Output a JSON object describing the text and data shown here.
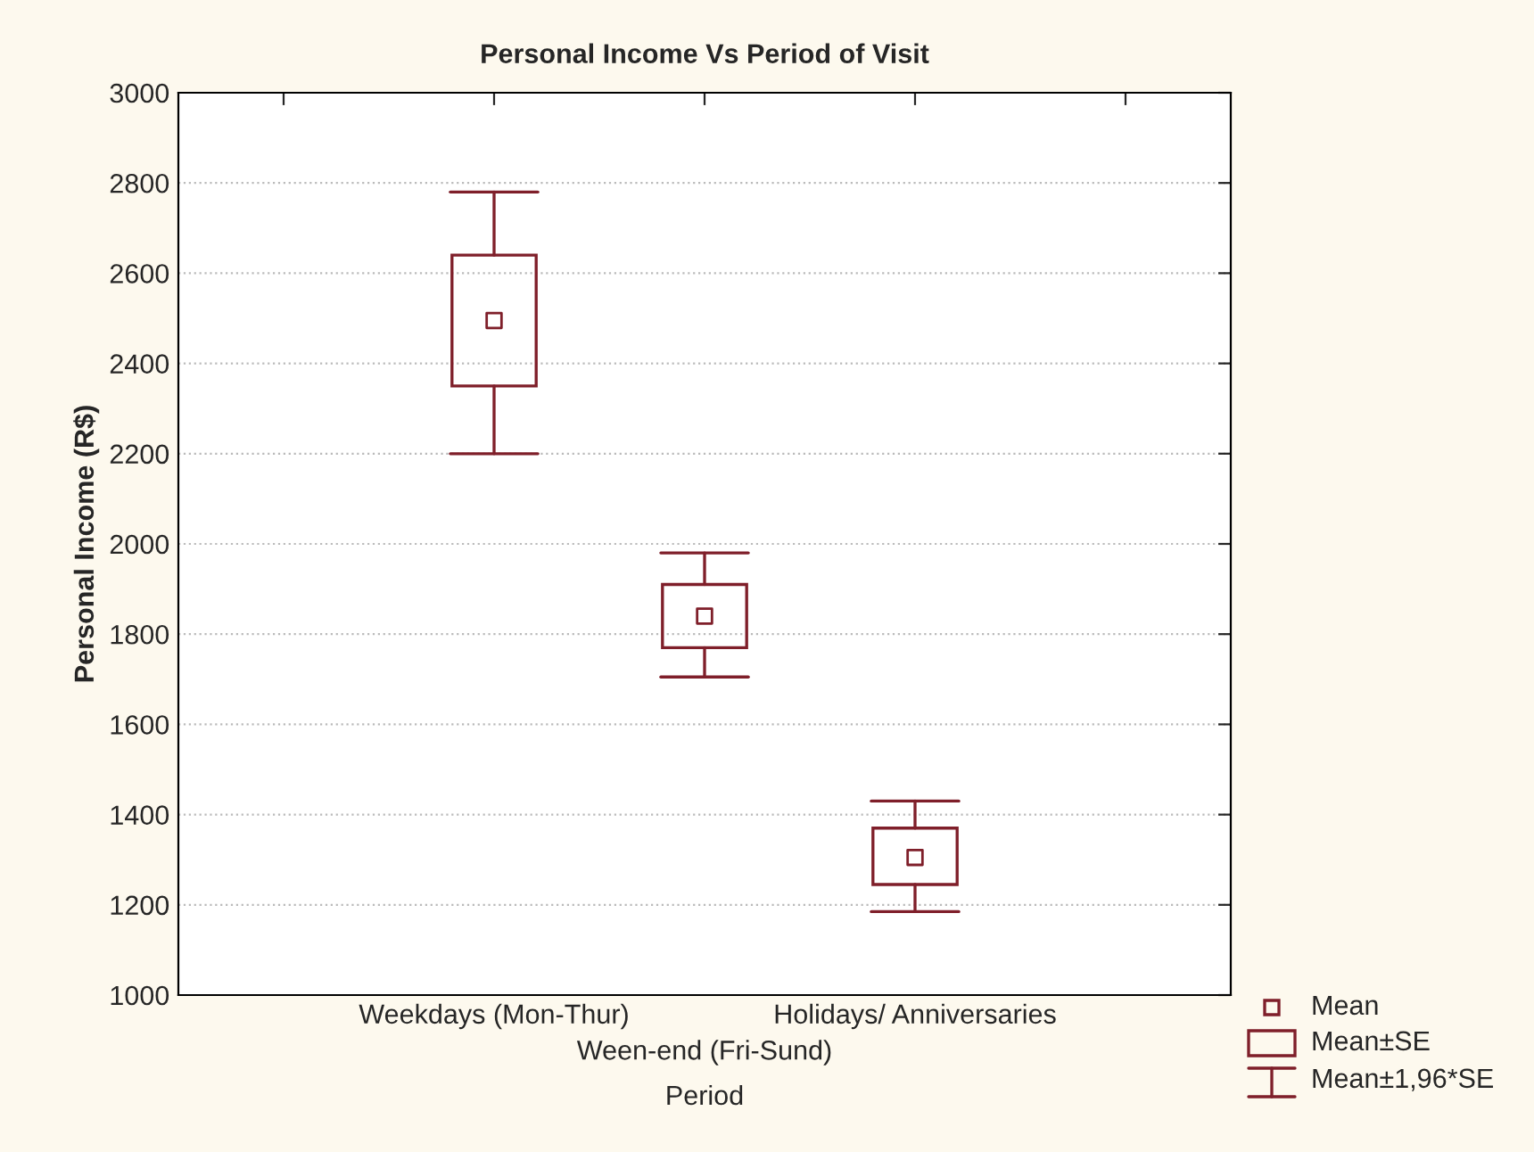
{
  "chart_data": {
    "type": "box",
    "title": "Personal Income Vs Period of Visit",
    "xlabel": "Period",
    "ylabel": "Personal Income (R$)",
    "categories": [
      "Weekdays (Mon-Thur)",
      "Ween-end (Fri-Sund)",
      "Holidays/ Anniversaries"
    ],
    "color": "#7f1f2a",
    "boxes": [
      {
        "low": 2200,
        "q1": 2350,
        "q3": 2640,
        "high": 2780,
        "mean": 2495
      },
      {
        "low": 1705,
        "q1": 1770,
        "q3": 1910,
        "high": 1980,
        "mean": 1840
      },
      {
        "low": 1185,
        "q1": 1245,
        "q3": 1370,
        "high": 1430,
        "mean": 1305
      }
    ],
    "ylim": [
      1000,
      3000
    ],
    "yticks": [
      1000,
      1200,
      1400,
      1600,
      1800,
      2000,
      2200,
      2400,
      2600,
      2800,
      3000
    ],
    "grid": "y",
    "annotations": [
      "Mean",
      "Mean±SE",
      "Mean±1,96*SE"
    ]
  }
}
